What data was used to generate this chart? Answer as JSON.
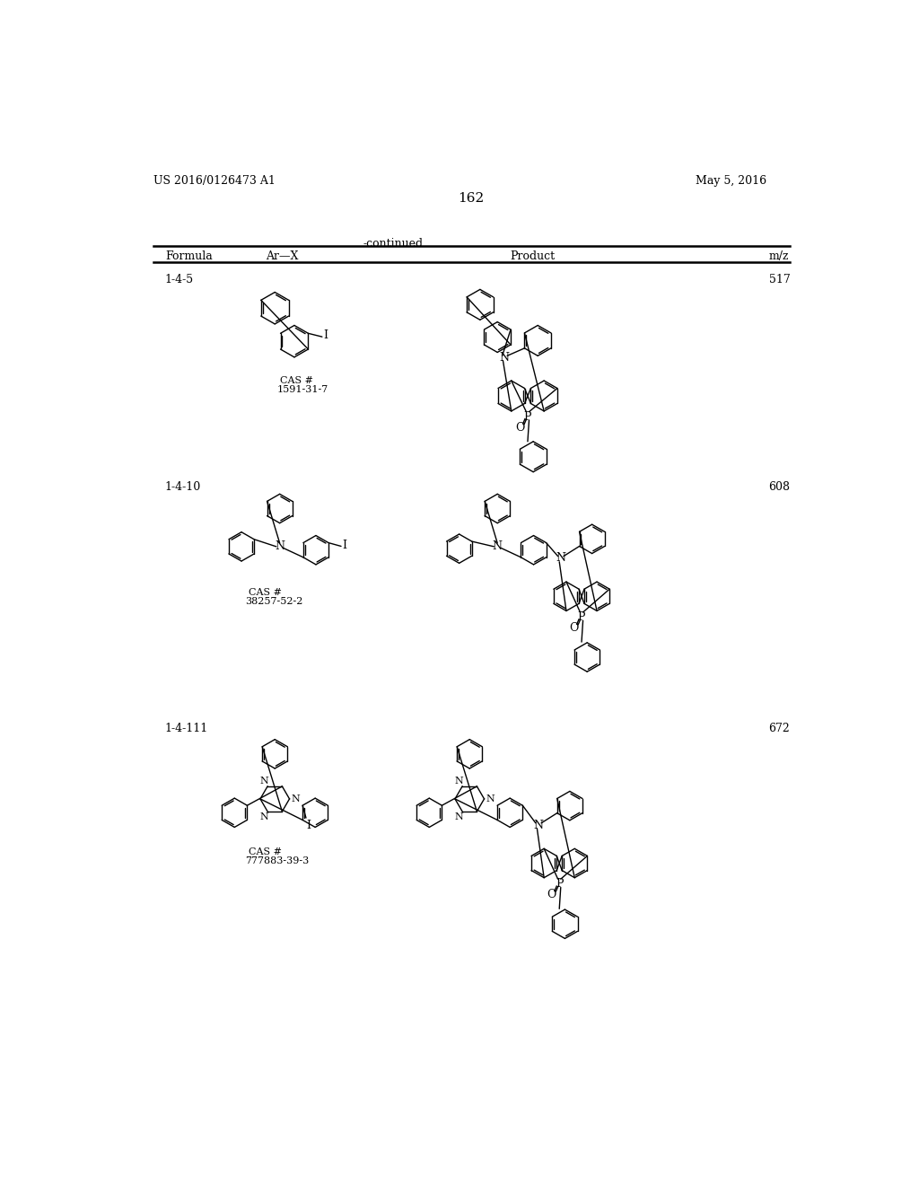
{
  "page_number": "162",
  "patent_number": "US 2016/0126473 A1",
  "patent_date": "May 5, 2016",
  "continued_label": "-continued",
  "table_headers": [
    "Formula",
    "Ar—X",
    "Product",
    "m/z"
  ],
  "rows": [
    {
      "formula": "1-4-5",
      "cas_line1": "CAS #",
      "cas_line2": "1591-31-7",
      "mz": "517"
    },
    {
      "formula": "1-4-10",
      "cas_line1": "CAS #",
      "cas_line2": "38257-52-2",
      "mz": "608"
    },
    {
      "formula": "1-4-111",
      "cas_line1": "CAS #",
      "cas_line2": "777883-39-3",
      "mz": "672"
    }
  ],
  "bg_color": "#ffffff",
  "text_color": "#000000",
  "line_color": "#000000"
}
